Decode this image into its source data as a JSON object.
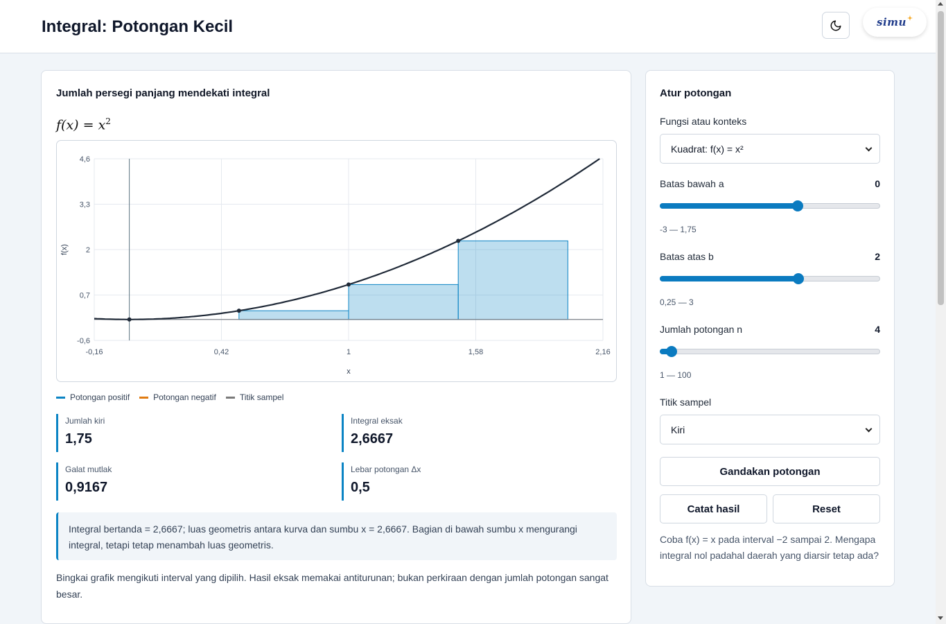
{
  "header": {
    "title": "Integral: Potongan Kecil",
    "logo": "simu",
    "theme_icon": "moon-icon"
  },
  "main": {
    "card_title": "Jumlah persegi panjang mendekati integral",
    "formula": {
      "lhs": "f(x) = x",
      "exp": "2"
    },
    "legend": [
      {
        "label": "Potongan positif",
        "color": "#0b84c4"
      },
      {
        "label": "Potongan negatif",
        "color": "#e07b12"
      },
      {
        "label": "Titik sampel",
        "color": "#7a7a7a"
      }
    ],
    "stats": [
      {
        "label": "Jumlah kiri",
        "value": "1,75"
      },
      {
        "label": "Integral eksak",
        "value": "2,6667"
      },
      {
        "label": "Galat mutlak",
        "value": "0,9167"
      },
      {
        "label": "Lebar potongan Δx",
        "value": "0,5"
      }
    ],
    "note": "Integral bertanda = 2,6667; luas geometris antara kurva dan sumbu x = 2,6667. Bagian di bawah sumbu x mengurangi integral, tetapi tetap menambah luas geometris.",
    "footnote": "Bingkai grafik mengikuti interval yang dipilih. Hasil eksak memakai antiturunan; bukan perkiraan dengan jumlah potongan sangat besar."
  },
  "chart_data": {
    "type": "area",
    "xlabel": "x",
    "ylabel": "f(x)",
    "xlim": [
      -0.16,
      2.16
    ],
    "ylim": [
      -0.6,
      4.6
    ],
    "x_ticks": [
      "-0,16",
      "0,42",
      "1",
      "1,58",
      "2,16"
    ],
    "y_ticks": [
      "4,6",
      "3,3",
      "2",
      "0,7",
      "-0,6"
    ],
    "x_tick_values": [
      -0.16,
      0.42,
      1,
      1.58,
      2.16
    ],
    "y_tick_values": [
      4.6,
      3.3,
      2,
      0.7,
      -0.6
    ],
    "function": "x^2",
    "curve_domain": [
      -0.16,
      2.3
    ],
    "rectangles": [
      {
        "x0": 0,
        "x1": 0.5,
        "height": 0
      },
      {
        "x0": 0.5,
        "x1": 1,
        "height": 0.25
      },
      {
        "x0": 1,
        "x1": 1.5,
        "height": 1
      },
      {
        "x0": 1.5,
        "x1": 2,
        "height": 2.25
      }
    ],
    "sample_points": [
      {
        "x": 0,
        "y": 0
      },
      {
        "x": 0.5,
        "y": 0.25
      },
      {
        "x": 1,
        "y": 1
      },
      {
        "x": 1.5,
        "y": 2.25
      }
    ],
    "rect_color": "#0b84c4",
    "curve_color": "#1f2937",
    "grid": true
  },
  "side": {
    "title": "Atur potongan",
    "function_label": "Fungsi atau konteks",
    "function_value": "Kuadrat: f(x) = x²",
    "a_label": "Batas bawah a",
    "a_value": "0",
    "a_range": "-3 — 1,75",
    "a_fraction": 0.6316,
    "b_label": "Batas atas b",
    "b_value": "2",
    "b_range": "0,25 — 3",
    "b_fraction": 0.6364,
    "n_label": "Jumlah potongan n",
    "n_value": "4",
    "n_range": "1 — 100",
    "n_fraction": 0.0303,
    "sample_label": "Titik sampel",
    "sample_value": "Kiri",
    "double_button": "Gandakan potongan",
    "record_button": "Catat hasil",
    "reset_button": "Reset",
    "hint": "Coba f(x) = x pada interval −2 sampai 2. Mengapa integral nol padahal daerah yang diarsir tetap ada?"
  }
}
